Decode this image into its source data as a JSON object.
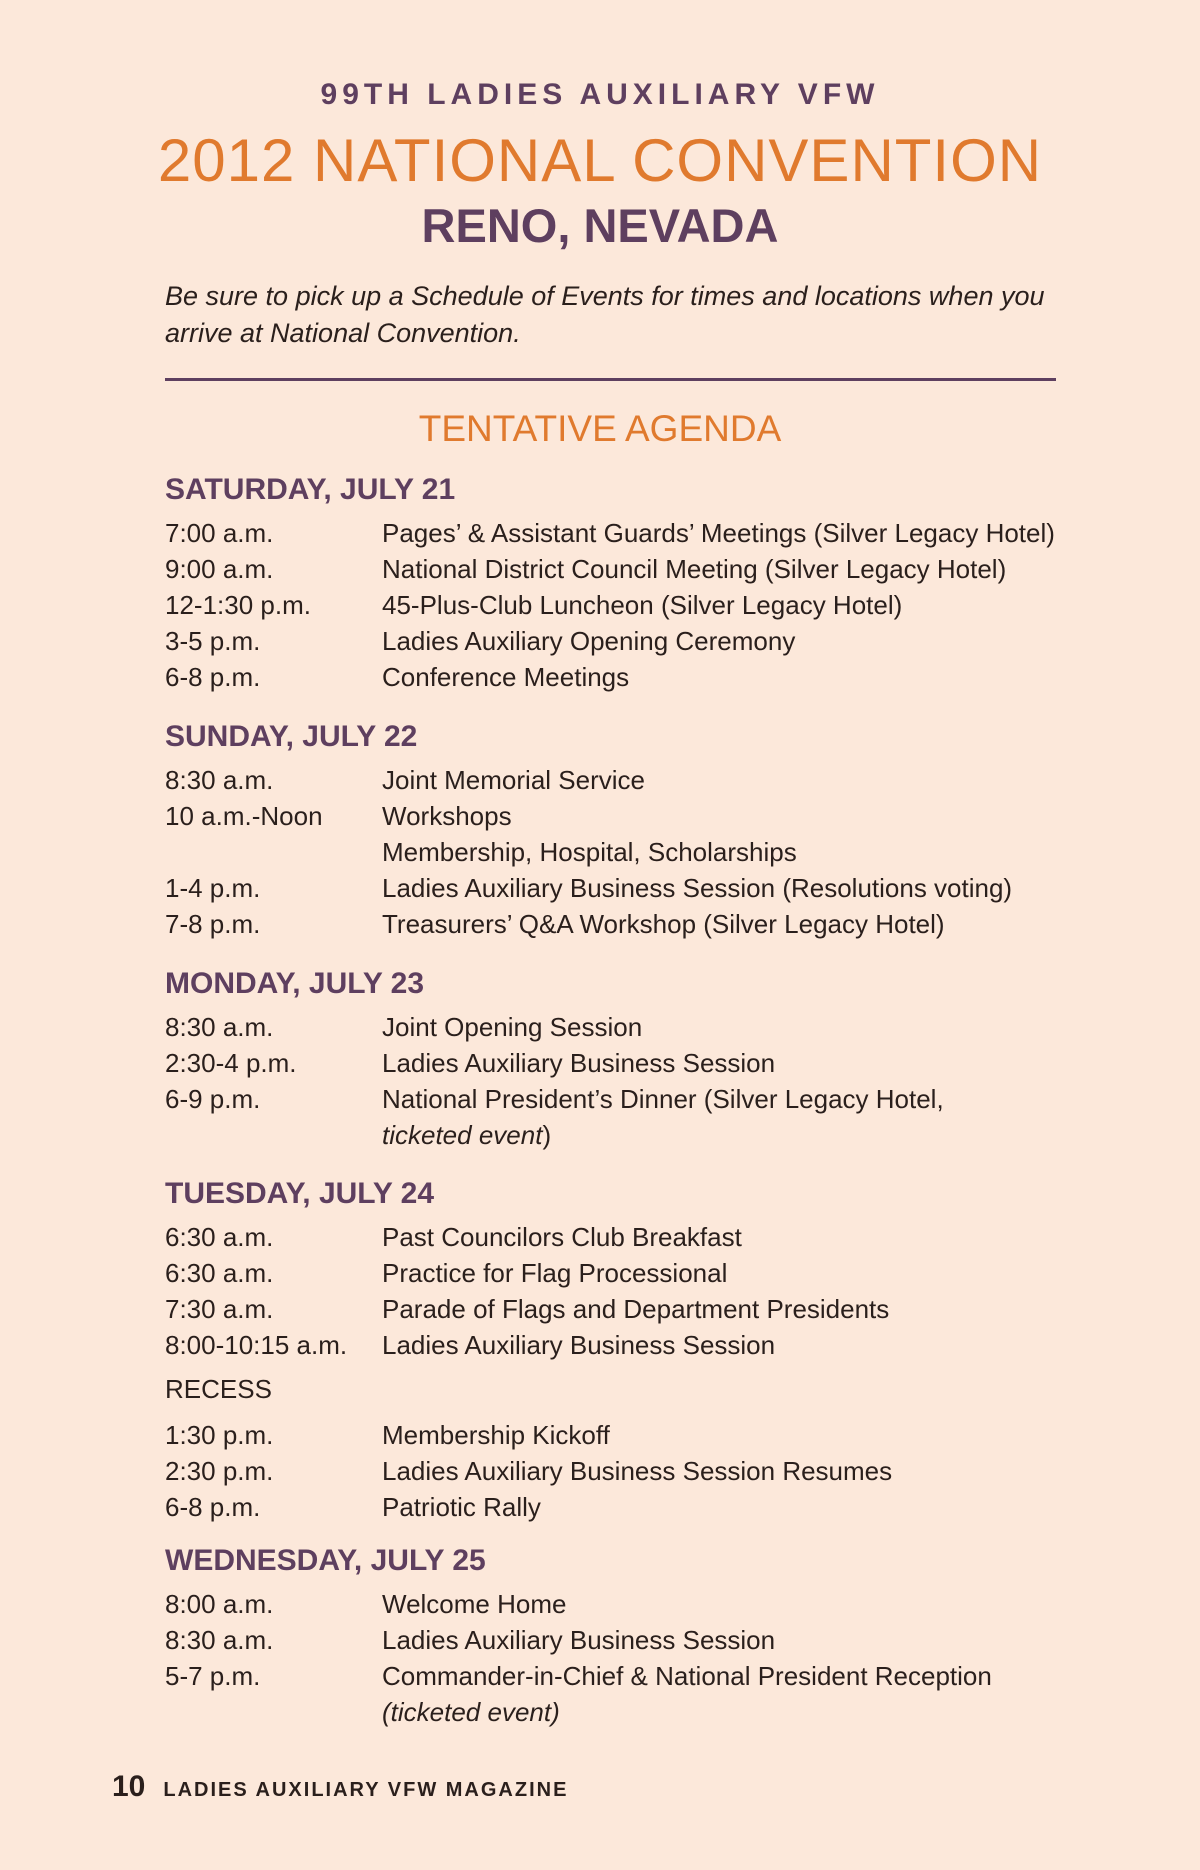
{
  "header": {
    "kicker": "99TH LADIES AUXILIARY VFW",
    "title": "2012 NATIONAL CONVENTION",
    "city": "RENO, NEVADA",
    "intro": "Be sure to pick up a Schedule of Events for times and locations when you arrive at National Convention."
  },
  "agenda_title": "TENTATIVE AGENDA",
  "colors": {
    "background": "#fce8da",
    "accent_orange": "#e07a2e",
    "accent_purple": "#5e3f5f"
  },
  "days": [
    {
      "heading": "SATURDAY, JULY 21",
      "rows": [
        {
          "time": "7:00 a.m.",
          "event": "Pages’ & Assistant Guards’ Meetings (Silver Legacy Hotel)"
        },
        {
          "time": "9:00 a.m.",
          "event": "National District Council Meeting (Silver Legacy Hotel)"
        },
        {
          "time": "12-1:30 p.m.",
          "event": "45-Plus-Club Luncheon (Silver Legacy Hotel)"
        },
        {
          "time": "3-5 p.m.",
          "event": "Ladies Auxiliary Opening Ceremony"
        },
        {
          "time": "6-8 p.m.",
          "event": "Conference Meetings"
        }
      ]
    },
    {
      "heading": "SUNDAY, JULY 22",
      "rows": [
        {
          "time": "8:30 a.m.",
          "event": "Joint Memorial Service"
        },
        {
          "time": "10 a.m.-Noon",
          "event": "Workshops"
        },
        {
          "time": "",
          "event": "Membership, Hospital, Scholarships"
        },
        {
          "time": "1-4 p.m.",
          "event": "Ladies Auxiliary Business Session (Resolutions voting)"
        },
        {
          "time": "7-8 p.m.",
          "event": "Treasurers’ Q&A Workshop (Silver Legacy Hotel)"
        }
      ]
    },
    {
      "heading": "MONDAY, JULY 23",
      "rows": [
        {
          "time": "8:30 a.m.",
          "event": "Joint Opening Session"
        },
        {
          "time": "2:30-4 p.m.",
          "event": "Ladies Auxiliary Business Session"
        },
        {
          "time": "6-9 p.m.",
          "event": "National President’s Dinner (Silver Legacy Hotel,"
        },
        {
          "time": "",
          "italic": "ticketed event",
          "event": ")"
        }
      ]
    },
    {
      "heading": "TUESDAY, JULY 24",
      "rows": [
        {
          "time": "6:30 a.m.",
          "event": "Past Councilors Club Breakfast"
        },
        {
          "time": "6:30 a.m.",
          "event": "Practice for Flag Processional"
        },
        {
          "time": "7:30 a.m.",
          "event": "Parade of Flags and Department Presidents"
        },
        {
          "time": "8:00-10:15 a.m.",
          "event": "Ladies Auxiliary Business Session"
        }
      ],
      "recess": "RECESS",
      "rows_after": [
        {
          "time": "1:30 p.m.",
          "event": "Membership Kickoff"
        },
        {
          "time": "2:30 p.m.",
          "event": "Ladies Auxiliary Business Session Resumes"
        },
        {
          "time": "6-8 p.m.",
          "event": "Patriotic Rally"
        }
      ]
    },
    {
      "heading": "WEDNESDAY, JULY 25",
      "rows": [
        {
          "time": "8:00 a.m.",
          "event": "Welcome Home"
        },
        {
          "time": "8:30 a.m.",
          "event": "Ladies Auxiliary Business Session"
        },
        {
          "time": "5-7 p.m.",
          "event": "Commander-in-Chief & National President Reception"
        },
        {
          "time": "",
          "italic": "(ticketed event)"
        }
      ]
    }
  ],
  "footer": {
    "page_number": "10",
    "publication": "LADIES AUXILIARY VFW MAGAZINE"
  }
}
